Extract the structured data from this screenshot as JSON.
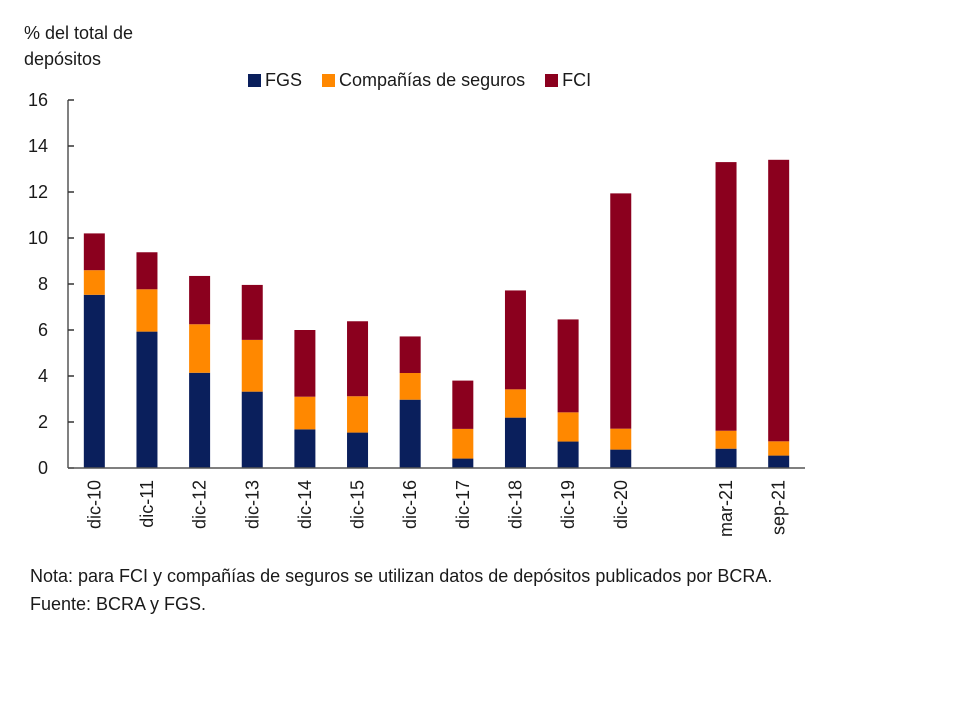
{
  "chart_data": {
    "type": "bar",
    "stacked": true,
    "title": "",
    "ylabel": "% del total de\ndepósitos",
    "xlabel": "",
    "ylim": [
      0,
      16
    ],
    "yticks": [
      0,
      2,
      4,
      6,
      8,
      10,
      12,
      14,
      16
    ],
    "grid": false,
    "legend_position": "top-center",
    "categories": [
      "dic-10",
      "dic-11",
      "dic-12",
      "dic-13",
      "dic-14",
      "dic-15",
      "dic-16",
      "dic-17",
      "dic-18",
      "dic-19",
      "dic-20",
      "",
      "mar-21",
      "sep-21"
    ],
    "series": [
      {
        "name": "FGS",
        "color": "#0a1f5c",
        "values": [
          7.53,
          5.93,
          4.14,
          3.32,
          1.68,
          1.54,
          2.97,
          0.41,
          2.19,
          1.15,
          0.8,
          null,
          0.84,
          0.54
        ]
      },
      {
        "name": "Compañías de seguros",
        "color": "#ff8800",
        "values": [
          1.07,
          1.84,
          2.11,
          2.25,
          1.42,
          1.58,
          1.16,
          1.29,
          1.23,
          1.27,
          0.91,
          null,
          0.78,
          0.62
        ]
      },
      {
        "name": "FCI",
        "color": "#8b001e",
        "values": [
          1.6,
          1.61,
          2.1,
          2.39,
          2.9,
          3.26,
          1.59,
          2.1,
          4.3,
          4.04,
          10.23,
          null,
          11.68,
          12.24
        ]
      }
    ]
  },
  "note": "Nota: para FCI y compañías de seguros se utilizan datos de depósitos publicados por BCRA. Fuente: BCRA y FGS."
}
